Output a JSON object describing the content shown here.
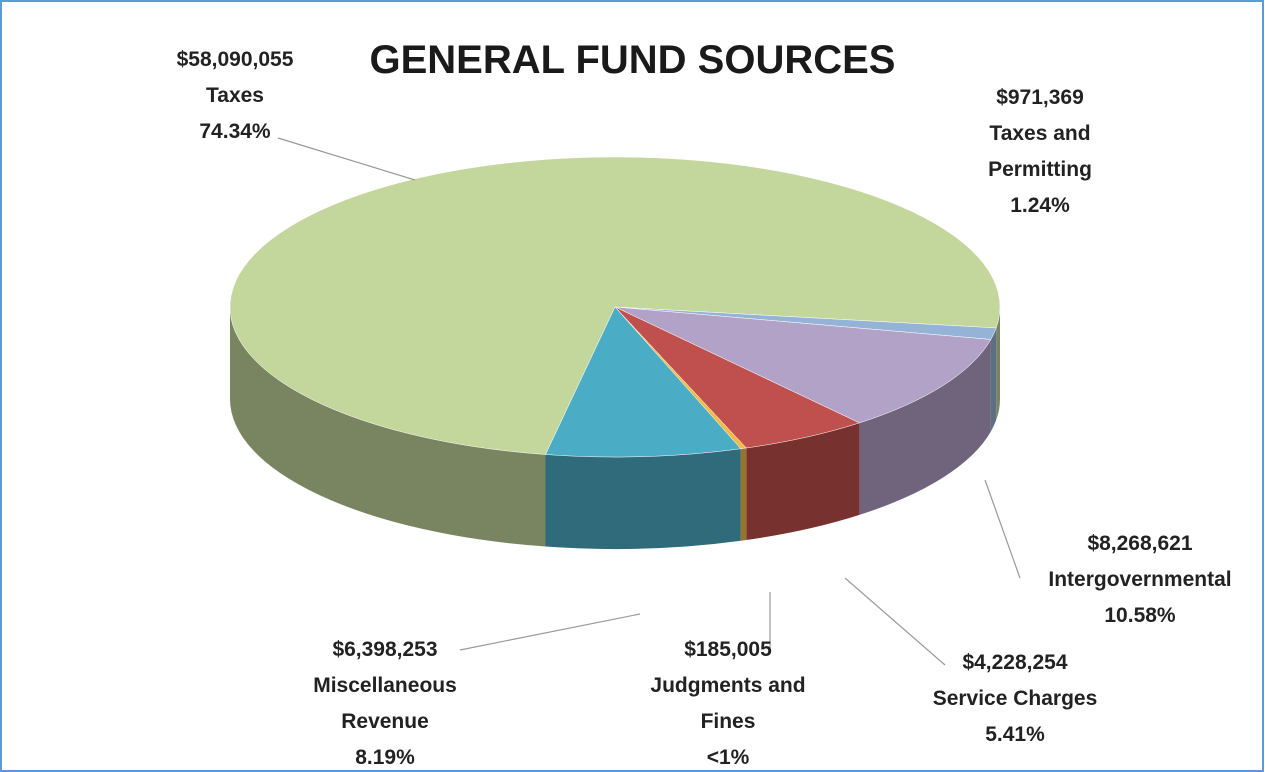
{
  "chart_data": {
    "type": "pie",
    "title": "GENERAL FUND SOURCES",
    "categories": [
      "Taxes",
      "Taxes and Permitting",
      "Intergovernmental",
      "Service Charges",
      "Judgments and Fines",
      "Miscellaneous Revenue"
    ],
    "values": [
      58090055,
      971369,
      8268621,
      4228254,
      185005,
      6398253
    ],
    "value_labels": [
      "$58,090,055",
      "$971,369",
      "$8,268,621",
      "$4,228,254",
      "$185,005",
      "$6,398,253"
    ],
    "percent_labels": [
      "74.34%",
      "1.24%",
      "10.58%",
      "5.41%",
      "<1%",
      "8.19%"
    ],
    "colors": [
      "#c3d69b",
      "#95b3d7",
      "#b3a2c7",
      "#c0504d",
      "#f5b942",
      "#4bacc6"
    ]
  }
}
